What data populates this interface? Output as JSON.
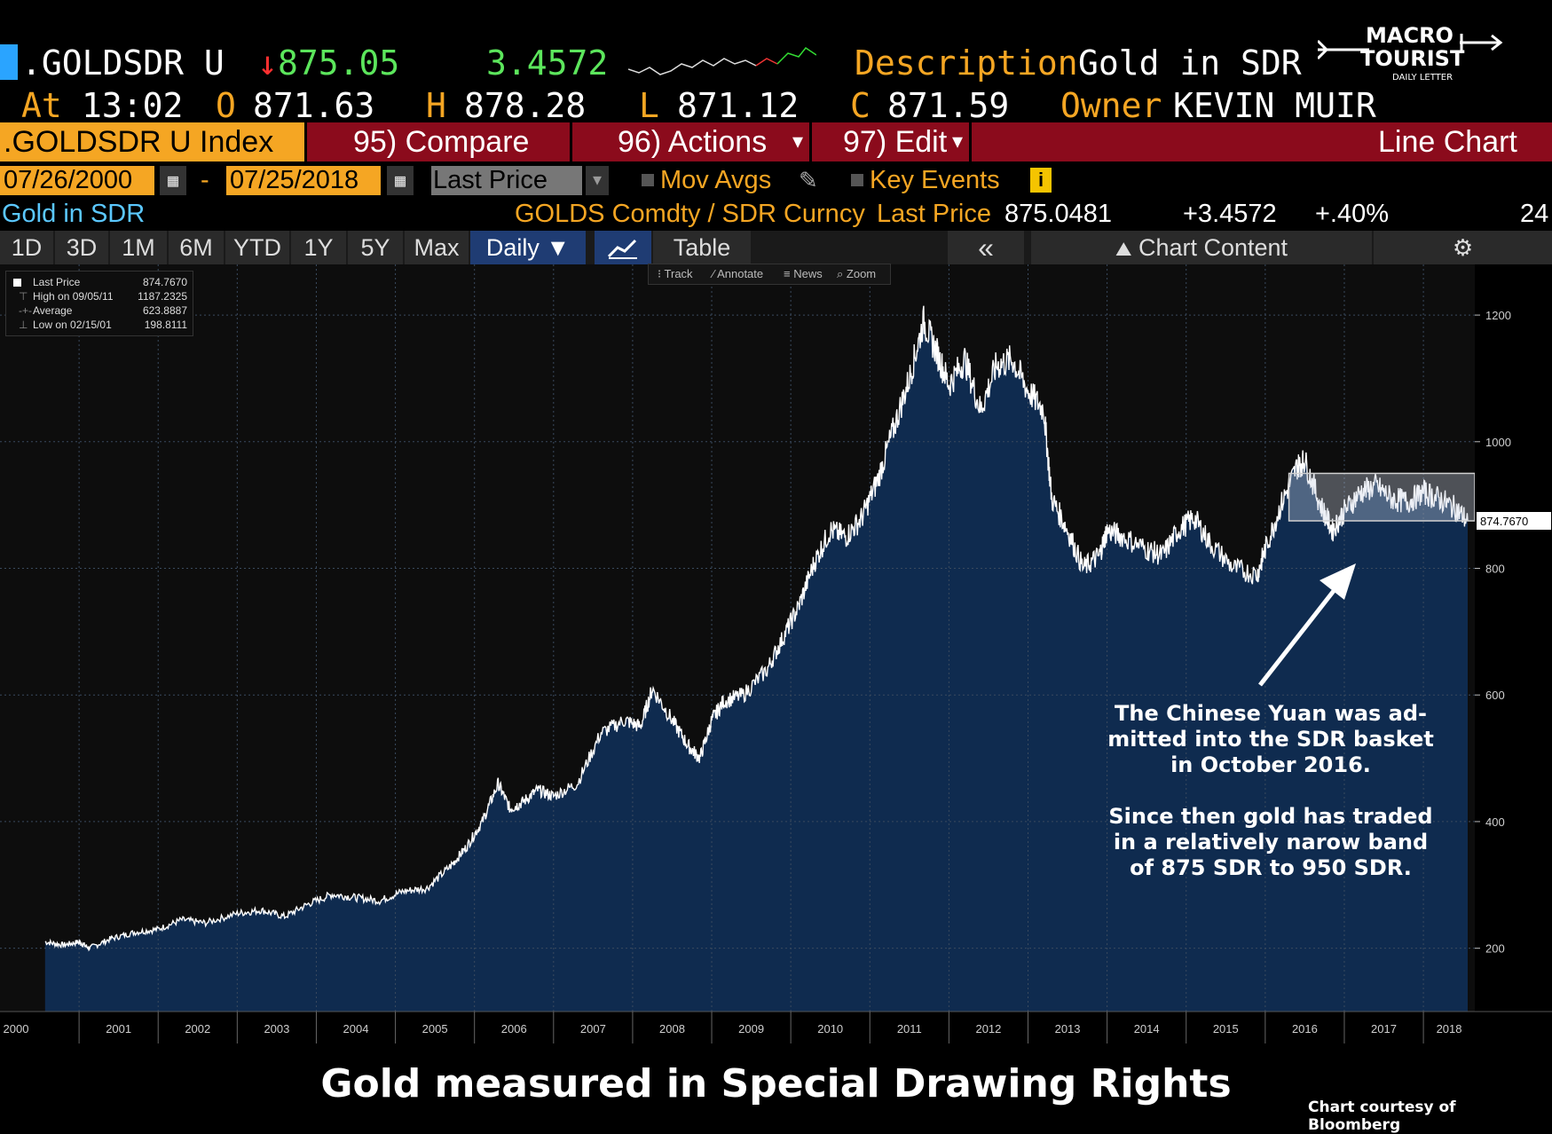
{
  "header": {
    "ticker": ".GOLDSDR U",
    "last_arrow": "↓",
    "last": "875.05",
    "change": "3.4572",
    "description_label": "Description",
    "description": "Gold in SDR",
    "at_label": "At",
    "time": "13:02",
    "open_label": "O",
    "open": "871.63",
    "high_label": "H",
    "high": "878.28",
    "low_label": "L",
    "low": "871.12",
    "close_label": "C",
    "close": "871.59",
    "owner_label": "Owner",
    "owner": "KEVIN MUIR"
  },
  "logo": {
    "line1": "MACRO",
    "line2": "TOURIST",
    "line3": "DAILY LETTER"
  },
  "toolbar": {
    "index": ".GOLDSDR U Index",
    "compare": "95) Compare",
    "actions": "96) Actions",
    "edit": "97) Edit",
    "chart_type": "Line Chart",
    "dropdown_glyph": "▾"
  },
  "controls": {
    "start_date": "07/26/2000",
    "date_sep": "-",
    "end_date": "07/25/2018",
    "field": "Last Price",
    "mov_avgs": "Mov Avgs",
    "key_events": "Key Events",
    "info_glyph": "i"
  },
  "security_row": {
    "name": "Gold in SDR",
    "security": "GOLDS Comdty / SDR Curncy",
    "field": "Last Price",
    "value": "875.0481",
    "change": "+3.4572",
    "pct": "+.40%",
    "count": "24"
  },
  "ranges": [
    "1D",
    "3D",
    "1M",
    "6M",
    "YTD",
    "1Y",
    "5Y",
    "Max"
  ],
  "range_tools": {
    "freq": "Daily ▼",
    "table": "Table",
    "collapse": "«",
    "content": "Chart Content",
    "settings": "⚙"
  },
  "mini_tools": [
    "Track",
    "Annotate",
    "News",
    "Zoom"
  ],
  "legend": {
    "rows": [
      {
        "label": "Last Price",
        "value": "874.7670"
      },
      {
        "label": "High on 09/05/11",
        "value": "1187.2325"
      },
      {
        "label": "Average",
        "value": "623.8887"
      },
      {
        "label": "Low on 02/15/01",
        "value": "198.8111"
      }
    ]
  },
  "annotation": {
    "lines": [
      "The Chinese Yuan was ad-",
      "mitted into the SDR basket",
      "in October 2016.",
      "",
      "Since then gold has traded",
      "in a relatively narow band",
      "of 875 SDR to 950 SDR."
    ]
  },
  "footer": {
    "title": "Gold measured in Special Drawing Rights",
    "courtesy": "Chart courtesy of Bloomberg"
  },
  "chart_data": {
    "type": "area",
    "title": "",
    "xlabel": "",
    "ylabel": "",
    "x_ticks": [
      2000,
      2001,
      2002,
      2003,
      2004,
      2005,
      2006,
      2007,
      2008,
      2009,
      2010,
      2011,
      2012,
      2013,
      2014,
      2015,
      2016,
      2017,
      2018
    ],
    "y_ticks": [
      200,
      400,
      600,
      800,
      1000,
      1200
    ],
    "xlim": [
      2000.0,
      2018.65
    ],
    "ylim": [
      100,
      1280
    ],
    "last_value_label": "874.7670",
    "band": {
      "x": [
        2016.3,
        2018.65
      ],
      "y": [
        875,
        950
      ]
    },
    "series": [
      {
        "x": [
          2000.57,
          2000.8,
          2001.0,
          2001.13,
          2001.4,
          2001.7,
          2002.0,
          2002.3,
          2002.6,
          2003.0,
          2003.3,
          2003.6,
          2003.9,
          2004.2,
          2004.5,
          2004.8,
          2005.1,
          2005.4,
          2005.7,
          2005.9,
          2006.1,
          2006.3,
          2006.45,
          2006.6,
          2006.8,
          2007.0,
          2007.3,
          2007.6,
          2007.9,
          2008.1,
          2008.25,
          2008.5,
          2008.7,
          2008.85,
          2009.0,
          2009.15,
          2009.4,
          2009.7,
          2009.9,
          2010.1,
          2010.3,
          2010.5,
          2010.7,
          2010.9,
          2011.1,
          2011.3,
          2011.5,
          2011.68,
          2011.85,
          2012.0,
          2012.2,
          2012.4,
          2012.6,
          2012.8,
          2013.0,
          2013.2,
          2013.3,
          2013.5,
          2013.7,
          2013.9,
          2014.0,
          2014.2,
          2014.5,
          2014.7,
          2014.9,
          2015.1,
          2015.3,
          2015.6,
          2015.9,
          2016.0,
          2016.2,
          2016.4,
          2016.5,
          2016.7,
          2016.85,
          2017.0,
          2017.2,
          2017.4,
          2017.6,
          2017.8,
          2018.0,
          2018.2,
          2018.4,
          2018.56
        ],
        "y": [
          210,
          205,
          210,
          200,
          215,
          225,
          230,
          245,
          240,
          255,
          260,
          250,
          270,
          285,
          280,
          275,
          290,
          295,
          330,
          360,
          400,
          460,
          420,
          430,
          450,
          440,
          460,
          540,
          560,
          550,
          610,
          560,
          520,
          500,
          560,
          590,
          600,
          640,
          690,
          740,
          810,
          860,
          850,
          880,
          940,
          1020,
          1100,
          1190,
          1140,
          1090,
          1130,
          1050,
          1120,
          1130,
          1080,
          1050,
          910,
          860,
          800,
          820,
          860,
          850,
          830,
          820,
          860,
          880,
          840,
          800,
          790,
          830,
          900,
          960,
          970,
          900,
          860,
          890,
          920,
          930,
          910,
          905,
          920,
          910,
          895,
          875
        ]
      }
    ]
  }
}
